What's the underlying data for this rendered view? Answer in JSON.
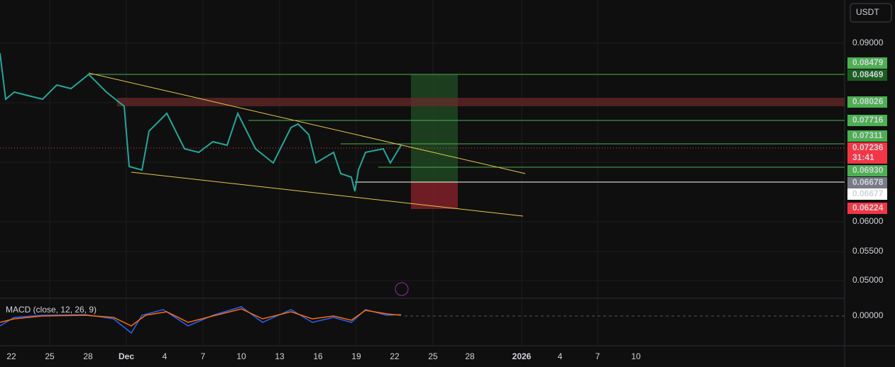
{
  "toolbar": {
    "currency": "USDT"
  },
  "price_axis": {
    "ticks": [
      "0.09000",
      "0.06000",
      "0.05500",
      "0.05000"
    ]
  },
  "price_tags": [
    "0.08479",
    "0.08469",
    "0.08026",
    "0.07716",
    "0.07311",
    "0.07236",
    "31:41",
    "0.06930",
    "0.06678",
    "0.06677",
    "0.06224"
  ],
  "time_axis": [
    "22",
    "25",
    "28",
    "Dec",
    "4",
    "7",
    "10",
    "13",
    "16",
    "19",
    "22",
    "25",
    "28",
    "2026",
    "4",
    "7",
    "10"
  ],
  "indicator": {
    "label": "MACD (close, 12, 26, 9)",
    "zero": "0.00000"
  }
}
